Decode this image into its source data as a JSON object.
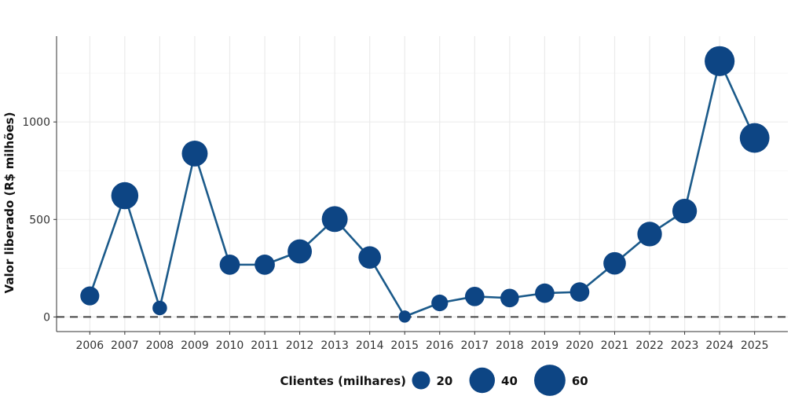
{
  "chart_data": {
    "type": "scatter",
    "title": "",
    "xlabel": "",
    "ylabel": "Valor liberado (R$ milhões)",
    "x": [
      2006,
      2007,
      2008,
      2009,
      2010,
      2011,
      2012,
      2013,
      2014,
      2015,
      2016,
      2017,
      2018,
      2019,
      2020,
      2021,
      2022,
      2023,
      2024,
      2025
    ],
    "x_tick_labels": [
      "2006",
      "2007",
      "2008",
      "2009",
      "2010",
      "2011",
      "2012",
      "2013",
      "2014",
      "2015",
      "2016",
      "2017",
      "2018",
      "2019",
      "2020",
      "2021",
      "2022",
      "2023",
      "2024",
      "2025"
    ],
    "y": [
      108,
      622,
      46,
      838,
      268,
      268,
      336,
      502,
      305,
      2,
      72,
      105,
      97,
      122,
      128,
      275,
      425,
      543,
      1312,
      918
    ],
    "size": [
      22,
      45,
      13,
      41,
      25,
      25,
      36,
      41,
      31,
      9,
      17,
      23,
      21,
      23,
      23,
      31,
      37,
      37,
      55,
      54
    ],
    "size_variable": "Clientes (milhares)",
    "ylim": [
      -75,
      1440
    ],
    "y_ticks": [
      0,
      500,
      1000
    ],
    "y_tick_labels": [
      "0",
      "500",
      "1000"
    ],
    "reference_line": 0,
    "grid": true,
    "legend_position": "bottom",
    "legend": {
      "title": "Clientes (milhares)",
      "items": [
        {
          "label": "20",
          "size": 20
        },
        {
          "label": "40",
          "size": 40
        },
        {
          "label": "60",
          "size": 60
        }
      ]
    },
    "colors": {
      "point": "#0d4584",
      "line": "#1b5a8a",
      "grid": "#ebebeb",
      "reference": "#444444",
      "axis": "#333333"
    }
  }
}
